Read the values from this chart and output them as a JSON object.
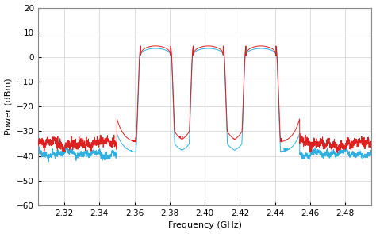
{
  "title": "",
  "xlabel": "Frequency (GHz)",
  "ylabel": "Power (dBm)",
  "xlim": [
    2.305,
    2.495
  ],
  "ylim": [
    -60,
    20
  ],
  "yticks": [
    -60,
    -50,
    -40,
    -30,
    -20,
    -10,
    0,
    10,
    20
  ],
  "xticks": [
    2.32,
    2.34,
    2.36,
    2.38,
    2.4,
    2.42,
    2.44,
    2.46,
    2.48
  ],
  "bg_color": "#ffffff",
  "line_color_red": "#dd2020",
  "line_color_blue": "#30b0e0",
  "channel_centers": [
    2.372,
    2.402,
    2.432
  ],
  "channel_bw": 0.02,
  "channel_peak_red": 4.5,
  "channel_peak_blue": 3.5,
  "noise_floor_red": -35.0,
  "noise_floor_blue": -39.0,
  "between_channel_dip_red": -25.0,
  "between_channel_dip_blue": -31.0,
  "grid_color": "#d0d0d0",
  "figsize": [
    4.74,
    2.95
  ],
  "dpi": 100
}
